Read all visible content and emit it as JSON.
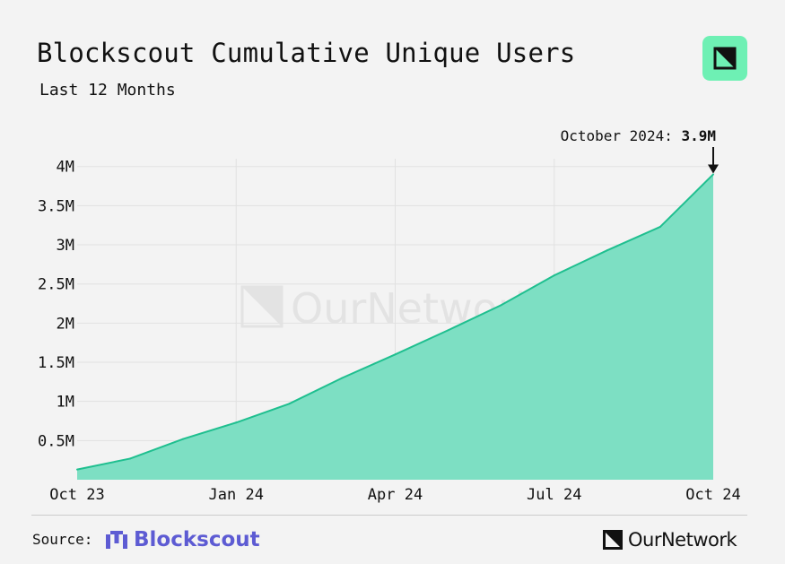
{
  "header": {
    "title": "Blockscout Cumulative Unique Users",
    "subtitle": "Last 12 Months",
    "brand_badge_icon": "ournetwork-logo-icon",
    "brand_badge_color": "#6ef0b4"
  },
  "chart_data": {
    "type": "area",
    "title": "Blockscout Cumulative Unique Users",
    "subtitle": "Last 12 Months",
    "x": [
      "2023-10",
      "2023-11",
      "2023-12",
      "2024-01",
      "2024-02",
      "2024-03",
      "2024-04",
      "2024-05",
      "2024-06",
      "2024-07",
      "2024-08",
      "2024-09",
      "2024-10"
    ],
    "series": [
      {
        "values": [
          0.13,
          0.27,
          0.52,
          0.73,
          0.97,
          1.3,
          1.6,
          1.91,
          2.23,
          2.61,
          2.93,
          3.23,
          3.9
        ]
      }
    ],
    "x_tick_labels": [
      "Oct 23",
      "Jan 24",
      "Apr 24",
      "Jul 24",
      "Oct 24"
    ],
    "y_ticks": [
      0.5,
      1,
      1.5,
      2,
      2.5,
      3,
      3.5,
      4
    ],
    "y_tick_labels": [
      "0.5M",
      "1M",
      "1.5M",
      "2M",
      "2.5M",
      "3M",
      "3.5M",
      "4M"
    ],
    "ylim": [
      0,
      4.1
    ],
    "y_unit": "M",
    "grid": true,
    "line_color": "#1fbf8f",
    "fill_color": "#7ddfc3",
    "annotation": {
      "prefix": "October 2024: ",
      "value": "3.9M",
      "target_x": "2024-10"
    },
    "watermark": "OurNetwork"
  },
  "footer": {
    "source_label": "Source:",
    "source_name": "Blockscout",
    "source_color": "#5d5bd3",
    "publisher": "OurNetwork"
  }
}
